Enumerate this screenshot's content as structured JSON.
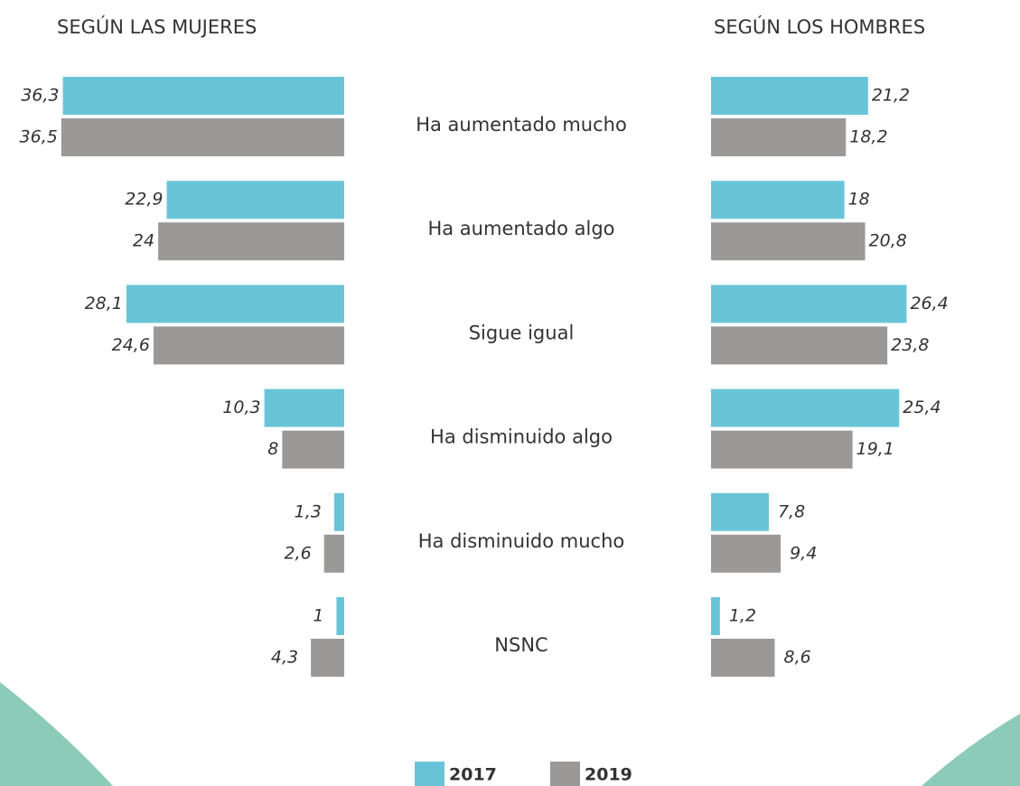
{
  "chart_data": {
    "type": "bar",
    "categories": [
      "Ha aumentado mucho",
      "Ha aumentado algo",
      "Sigue igual",
      "Ha disminuido algo",
      "Ha disminuido mucho",
      "NSNC"
    ],
    "legend": [
      {
        "name": "2017",
        "color": "#69c4d8"
      },
      {
        "name": "2019",
        "color": "#9a9998"
      }
    ],
    "panels": [
      {
        "title": "SEGÚN LAS MUJERES",
        "side": "left",
        "series": [
          {
            "values": [
              36.3,
              22.9,
              28.1,
              10.3,
              1.3,
              1
            ],
            "value_labels": [
              "36,3",
              "22,9",
              "28,1",
              "10,3",
              "1,3",
              "1"
            ]
          },
          {
            "values": [
              36.5,
              24,
              24.6,
              8,
              2.6,
              4.3
            ],
            "value_labels": [
              "36,5",
              "24",
              "24,6",
              "8",
              "2,6",
              "4,3"
            ]
          }
        ]
      },
      {
        "title": "SEGÚN LOS HOMBRES",
        "side": "right",
        "series": [
          {
            "values": [
              21.2,
              18,
              26.4,
              25.4,
              7.8,
              1.2
            ],
            "value_labels": [
              "21,2",
              "18",
              "26,4",
              "25,4",
              "7,8",
              "1,2"
            ]
          },
          {
            "values": [
              18.2,
              20.8,
              23.8,
              19.1,
              9.4,
              8.6
            ],
            "value_labels": [
              "18,2",
              "20,8",
              "23,8",
              "19,1",
              "9,4",
              "8,6"
            ]
          }
        ]
      }
    ]
  }
}
